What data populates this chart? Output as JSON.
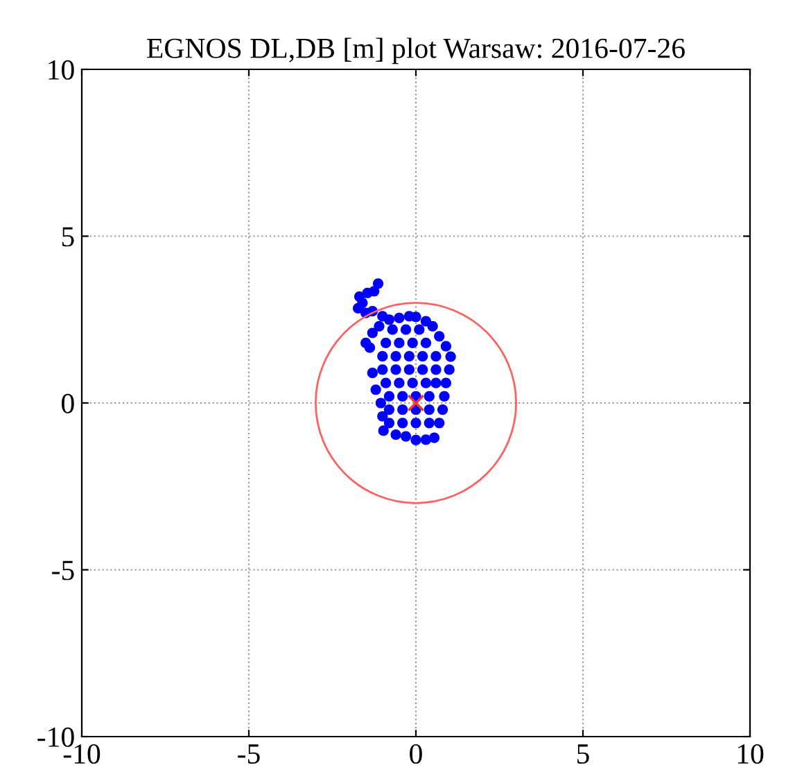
{
  "chart_data": {
    "type": "scatter",
    "title": "EGNOS DL,DB [m] plot Warsaw: 2016-07-26",
    "xlim": [
      -10,
      10
    ],
    "ylim": [
      -10,
      10
    ],
    "xticks": [
      -10,
      -5,
      0,
      5,
      10
    ],
    "yticks": [
      -10,
      -5,
      0,
      5,
      10
    ],
    "grid": true,
    "series": [
      {
        "type": "scatter",
        "marker": "circle",
        "color": "#0000ff",
        "x": [
          -1.13,
          -1.25,
          -1.45,
          -1.69,
          -1.6,
          -1.73,
          -1.5,
          -1.3,
          -1.0,
          -0.8,
          -0.5,
          -0.2,
          0.0,
          0.3,
          0.5,
          0.7,
          0.9,
          1.04,
          1.0,
          0.9,
          0.85,
          0.8,
          0.7,
          0.55,
          0.3,
          0.0,
          -0.3,
          -0.6,
          -0.97,
          -1.0,
          -1.05,
          -1.2,
          -1.3,
          -1.38,
          -1.5,
          -1.3,
          -1.1,
          -0.8,
          -0.4,
          0,
          0.4,
          -0.8,
          -0.4,
          0,
          0.4,
          -0.8,
          -0.4,
          0,
          0.4,
          -0.9,
          -0.5,
          -0.1,
          0.3,
          0.6,
          -1.0,
          -0.6,
          -0.2,
          0.2,
          0.6,
          -1.0,
          -0.6,
          -0.2,
          0.2,
          0.6,
          -0.9,
          -0.5,
          -0.1,
          0.3,
          -0.7,
          -0.3,
          0.1
        ],
        "values": [
          3.58,
          3.35,
          3.3,
          3.19,
          3.0,
          2.84,
          2.7,
          2.75,
          2.6,
          2.5,
          2.55,
          2.6,
          2.58,
          2.45,
          2.3,
          2.0,
          1.7,
          1.39,
          1.0,
          0.6,
          0.2,
          -0.2,
          -0.6,
          -1.04,
          -1.1,
          -1.11,
          -1.0,
          -0.95,
          -0.83,
          -0.4,
          0.0,
          0.4,
          0.9,
          1.66,
          1.8,
          2.1,
          2.3,
          -0.6,
          -0.6,
          -0.6,
          -0.6,
          -0.2,
          -0.2,
          -0.2,
          -0.2,
          0.2,
          0.2,
          0.2,
          0.2,
          0.6,
          0.6,
          0.6,
          0.6,
          0.6,
          1.0,
          1.0,
          1.0,
          1.0,
          1.0,
          1.4,
          1.4,
          1.4,
          1.4,
          1.4,
          1.8,
          1.8,
          1.8,
          1.8,
          2.2,
          2.2,
          2.2
        ]
      },
      {
        "type": "scatter",
        "marker": "cross",
        "color": "#ff3030",
        "x": [
          0
        ],
        "values": [
          0
        ]
      }
    ]
  }
}
